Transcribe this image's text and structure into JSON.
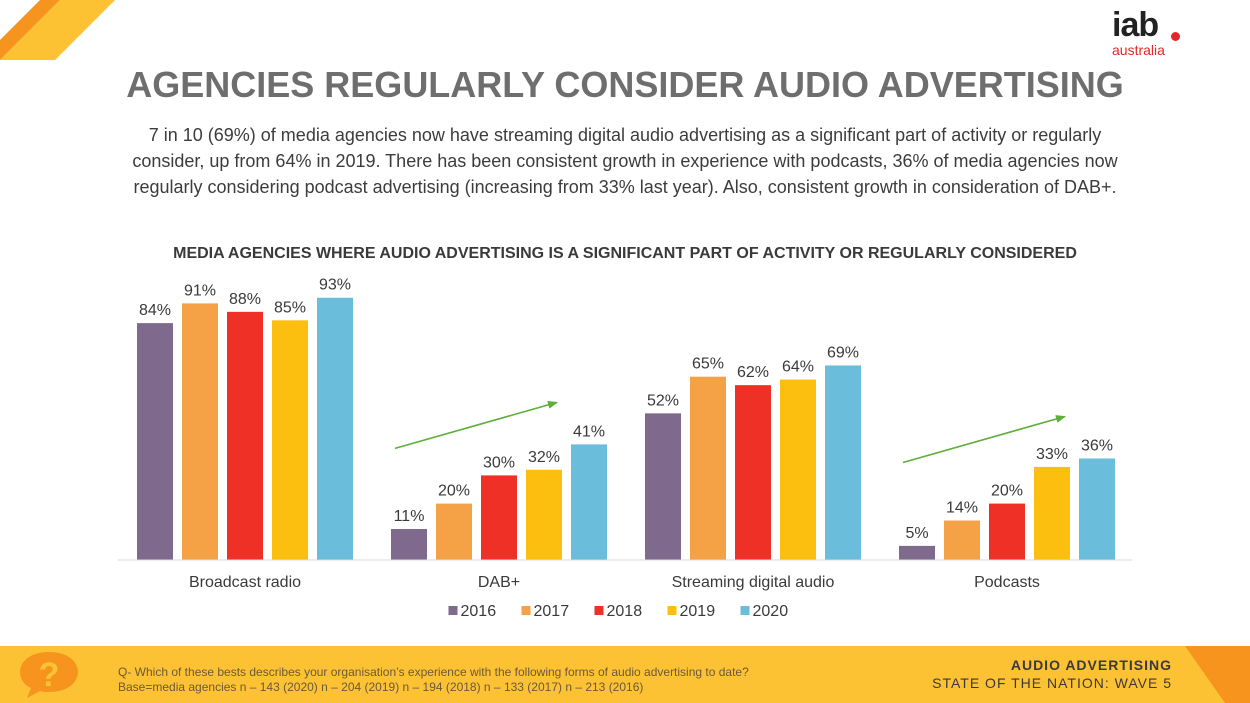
{
  "header": {
    "title": "AGENCIES REGULARLY CONSIDER AUDIO ADVERTISING",
    "logo_main": "iab",
    "logo_sub": "australia"
  },
  "intro": {
    "line1": "7 in 10 (69%) of media agencies now have streaming digital audio advertising as a significant part of activity or regularly",
    "line2": "consider, up from 64% in 2019. There has been consistent growth in experience with podcasts, 36% of media agencies now",
    "line3": "regularly considering podcast advertising (increasing from 33% last year). Also, consistent growth in consideration of DAB+."
  },
  "chart_data": {
    "type": "bar",
    "title": "MEDIA AGENCIES WHERE AUDIO ADVERTISING IS A SIGNIFICANT PART OF ACTIVITY OR REGULARLY CONSIDERED",
    "categories": [
      "Broadcast radio",
      "DAB+",
      "Streaming digital audio",
      "Podcasts"
    ],
    "series": [
      {
        "name": "2016",
        "color": "#7f6a8e",
        "values": [
          84,
          11,
          52,
          5
        ]
      },
      {
        "name": "2017",
        "color": "#f5a246",
        "values": [
          91,
          20,
          65,
          14
        ]
      },
      {
        "name": "2018",
        "color": "#ee3027",
        "values": [
          88,
          30,
          62,
          20
        ]
      },
      {
        "name": "2019",
        "color": "#fdbf0f",
        "values": [
          85,
          32,
          64,
          33
        ]
      },
      {
        "name": "2020",
        "color": "#6bbddc",
        "values": [
          93,
          41,
          69,
          36
        ]
      }
    ],
    "value_suffix": "%",
    "ylim": [
      0,
      100
    ],
    "grid": false,
    "legend": "bottom-center",
    "trend_arrows": [
      "DAB+",
      "Podcasts"
    ],
    "arrow_color": "#5fae3a"
  },
  "footer": {
    "question": "Q- Which of these bests describes your organisation’s experience with the following forms of audio advertising to date?",
    "base": "Base=media agencies n – 143 (2020)  n – 204 (2019) n – 194 (2018) n – 133 (2017) n – 213 (2016)",
    "right_line1": "AUDIO ADVERTISING",
    "right_line2": "STATE OF THE NATION: WAVE 5",
    "help_symbol": "?",
    "help_icon": "question-bubble-icon"
  },
  "colors": {
    "accent_orange": "#f7941d",
    "accent_yellow": "#fcc233",
    "brand_red": "#e8262a",
    "title_grey": "#6e6e6e"
  }
}
